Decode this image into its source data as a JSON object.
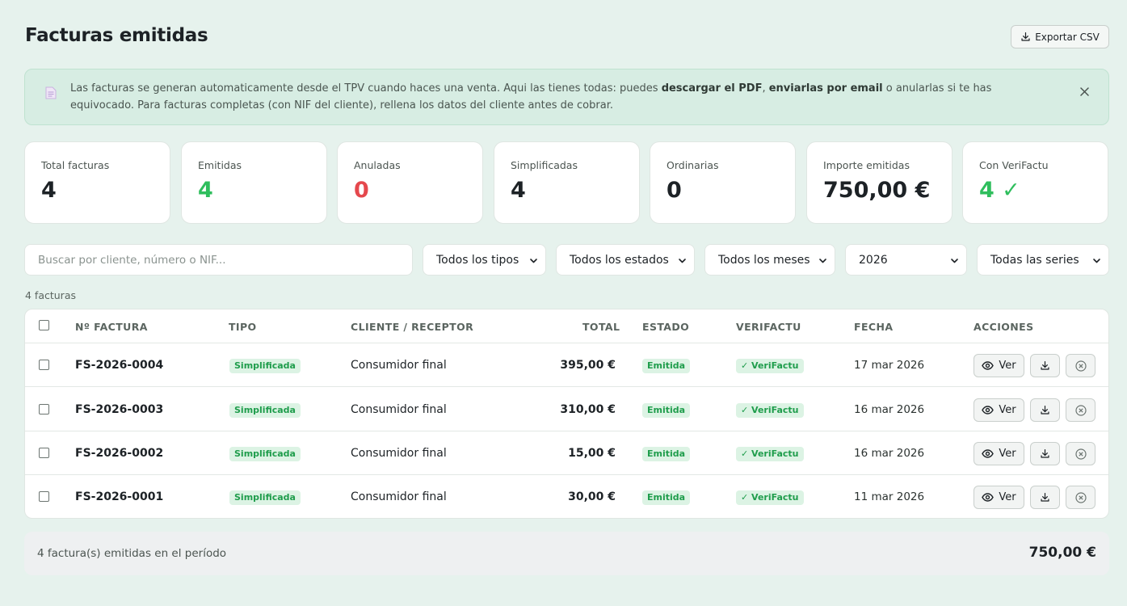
{
  "header": {
    "title": "Facturas emitidas",
    "export_label": "Exportar CSV"
  },
  "banner": {
    "text_1": "Las facturas se generan automaticamente desde el TPV cuando haces una venta. Aqui las tienes todas: puedes ",
    "bold_1": "descargar el PDF",
    "text_2": ", ",
    "bold_2": "enviarlas por email",
    "text_3": " o anularlas si te has equivocado. Para facturas completas (con NIF del cliente), rellena los datos del cliente antes de cobrar."
  },
  "stats": [
    {
      "label": "Total facturas",
      "value": "4"
    },
    {
      "label": "Emitidas",
      "value": "4"
    },
    {
      "label": "Anuladas",
      "value": "0"
    },
    {
      "label": "Simplificadas",
      "value": "4"
    },
    {
      "label": "Ordinarias",
      "value": "0"
    },
    {
      "label": "Importe emitidas",
      "value": "750,00 €"
    },
    {
      "label": "Con VeriFactu",
      "value": "4 ✓"
    }
  ],
  "filters": {
    "search_placeholder": "Buscar por cliente, número o NIF...",
    "type": "Todos los tipos",
    "status": "Todos los estados",
    "month": "Todos los meses",
    "year": "2026",
    "series": "Todas las series"
  },
  "count_text": "4 facturas",
  "table": {
    "columns": {
      "number": "Nº FACTURA",
      "type": "TIPO",
      "client": "CLIENTE / RECEPTOR",
      "total": "TOTAL",
      "status": "ESTADO",
      "verifactu": "VERIFACTU",
      "date": "FECHA",
      "actions": "ACCIONES"
    },
    "rows": [
      {
        "number": "FS-2026-0004",
        "type": "Simplificada",
        "client": "Consumidor final",
        "total": "395,00 €",
        "status": "Emitida",
        "verifactu": "✓ VeriFactu",
        "date": "17 mar 2026",
        "view": "Ver"
      },
      {
        "number": "FS-2026-0003",
        "type": "Simplificada",
        "client": "Consumidor final",
        "total": "310,00 €",
        "status": "Emitida",
        "verifactu": "✓ VeriFactu",
        "date": "16 mar 2026",
        "view": "Ver"
      },
      {
        "number": "FS-2026-0002",
        "type": "Simplificada",
        "client": "Consumidor final",
        "total": "15,00 €",
        "status": "Emitida",
        "verifactu": "✓ VeriFactu",
        "date": "16 mar 2026",
        "view": "Ver"
      },
      {
        "number": "FS-2026-0001",
        "type": "Simplificada",
        "client": "Consumidor final",
        "total": "30,00 €",
        "status": "Emitida",
        "verifactu": "✓ VeriFactu",
        "date": "11 mar 2026",
        "view": "Ver"
      }
    ]
  },
  "footer": {
    "label": "4 factura(s) emitidas en el período",
    "total": "750,00 €"
  },
  "colors": {
    "background": "#e6f2ed",
    "green": "#2fbe5d",
    "red": "#e5484d",
    "badge_bg": "#dcf3e4",
    "badge_text": "#1f9d4c"
  }
}
